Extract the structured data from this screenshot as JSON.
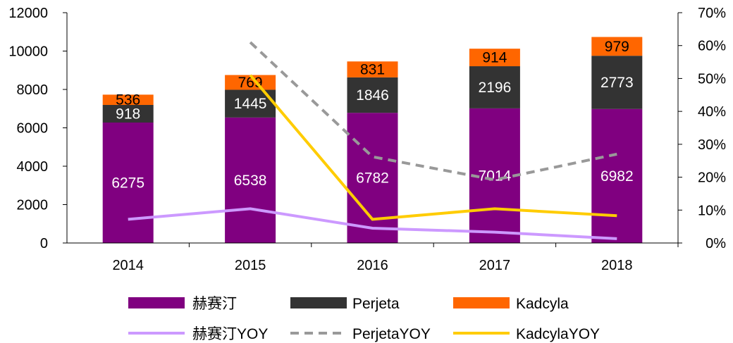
{
  "chart_data": {
    "type": "bar",
    "stacked": true,
    "categories": [
      "2014",
      "2015",
      "2016",
      "2017",
      "2018"
    ],
    "series": [
      {
        "name": "赫赛汀",
        "kind": "bar",
        "color": "#800080",
        "label_color": "#ffffff",
        "values": [
          6275,
          6538,
          6782,
          7014,
          6982
        ]
      },
      {
        "name": "Perjeta",
        "kind": "bar",
        "color": "#333333",
        "label_color": "#ffffff",
        "values": [
          918,
          1445,
          1846,
          2196,
          2773
        ]
      },
      {
        "name": "Kadcyla",
        "kind": "bar",
        "color": "#ff6600",
        "label_color": "#000000",
        "values": [
          536,
          769,
          831,
          914,
          979
        ]
      },
      {
        "name": "赫赛汀YOY",
        "kind": "line",
        "axis": "right",
        "color": "#cc99ff",
        "dash": "solid",
        "values": [
          7.2,
          10.4,
          4.5,
          3.3,
          1.3
        ]
      },
      {
        "name": "PerjetaYOY",
        "kind": "line",
        "axis": "right",
        "color": "#999999",
        "dash": "dashed",
        "values": [
          null,
          61.0,
          26.2,
          19.2,
          27.0
        ]
      },
      {
        "name": "KadcylaYOY",
        "kind": "line",
        "axis": "right",
        "color": "#ffcc00",
        "dash": "solid",
        "values": [
          null,
          51.0,
          7.2,
          10.4,
          8.3
        ]
      }
    ],
    "y_left": {
      "min": 0,
      "max": 12000,
      "ticks": [
        "0",
        "2000",
        "4000",
        "6000",
        "8000",
        "10000",
        "12000"
      ]
    },
    "y_right": {
      "min": 0,
      "max": 70,
      "ticks": [
        "0%",
        "10%",
        "20%",
        "30%",
        "40%",
        "50%",
        "60%",
        "70%"
      ]
    },
    "legend_position": "bottom",
    "title": "",
    "xlabel": "",
    "ylabel": ""
  }
}
